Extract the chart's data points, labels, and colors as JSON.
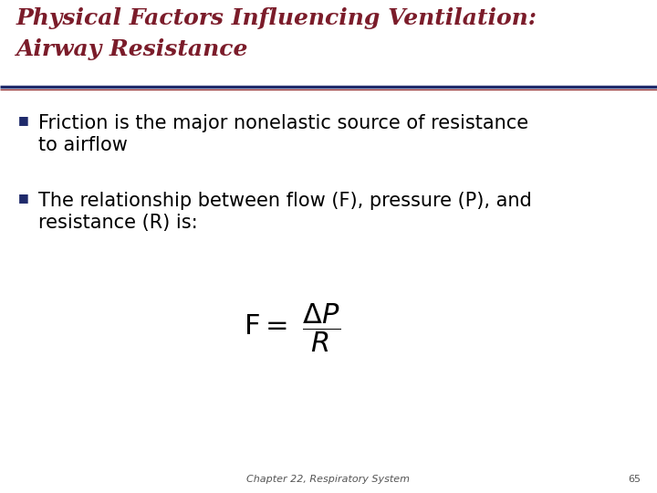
{
  "title_line1": "Physical Factors Influencing Ventilation:",
  "title_line2": "Airway Resistance",
  "title_color": "#7B1C2A",
  "title_fontsize": 18,
  "separator_color": "#1F2A6B",
  "separator_linewidth": 2.5,
  "bullet1_line1": "Friction is the major nonelastic source of resistance",
  "bullet1_line2": "to airflow",
  "bullet2_line1": "The relationship between flow (F), pressure (P), and",
  "bullet2_line2": "resistance (R) is:",
  "bullet_color": "#1F2A6B",
  "bullet_fontsize": 15,
  "formula_fontsize": 22,
  "formula_color": "#000000",
  "footer_text": "Chapter 22, Respiratory System",
  "footer_page": "65",
  "footer_fontsize": 8,
  "background_color": "#FFFFFF"
}
